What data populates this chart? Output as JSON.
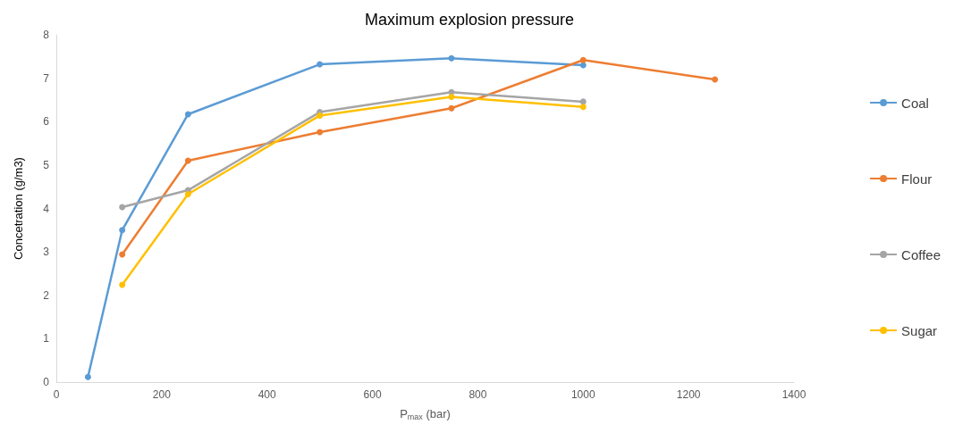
{
  "chart_data": {
    "type": "line",
    "title": "Maximum explosion pressure",
    "xlabel": "P$_{max}$ (bar)",
    "ylabel": "Concetration (g/m3)",
    "xlim": [
      0,
      1400
    ],
    "xticks": [
      0,
      200,
      400,
      600,
      800,
      1000,
      1200,
      1400
    ],
    "ylim": [
      0,
      8
    ],
    "yticks": [
      0,
      1,
      2,
      3,
      4,
      5,
      6,
      7,
      8
    ],
    "grid": false,
    "legend": "right",
    "marker": "circle",
    "line_style": "solid",
    "series": [
      {
        "name": "Coal",
        "color": "#5b9bd5",
        "x": [
          60,
          125,
          250,
          500,
          750,
          1000
        ],
        "values": [
          0.12,
          3.5,
          6.17,
          7.32,
          7.46,
          7.3
        ]
      },
      {
        "name": "Flour",
        "color": "#ed7d31",
        "x": [
          125,
          250,
          500,
          750,
          1000,
          1250
        ],
        "values": [
          2.94,
          5.1,
          5.76,
          6.31,
          7.42,
          6.97
        ]
      },
      {
        "name": "Coffee",
        "color": "#a5a5a5",
        "x": [
          125,
          250,
          500,
          750,
          1000
        ],
        "values": [
          4.03,
          4.42,
          6.22,
          6.68,
          6.46
        ]
      },
      {
        "name": "Sugar",
        "color": "#ffc000",
        "x": [
          125,
          250,
          500,
          750,
          1000
        ],
        "values": [
          2.24,
          4.33,
          6.14,
          6.57,
          6.34
        ]
      }
    ]
  }
}
